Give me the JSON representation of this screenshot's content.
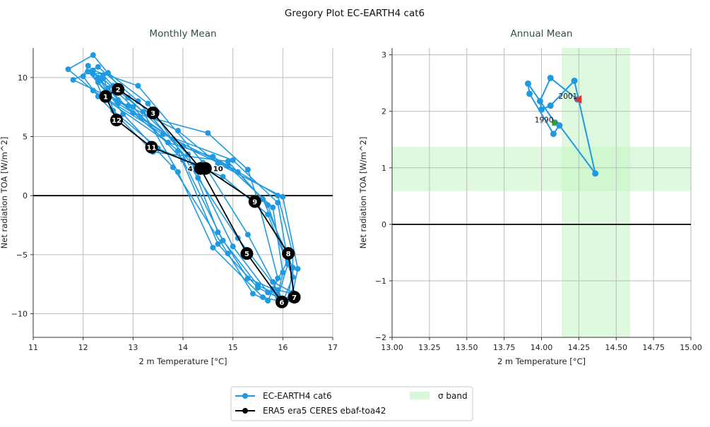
{
  "chart_data": [
    {
      "type": "line",
      "suptitle": "Gregory Plot EC-EARTH4 cat6",
      "title": "Monthly Mean",
      "xlabel": "2 m Temperature [°C]",
      "ylabel": "Net radiation TOA [W/m^2]",
      "xlim": [
        11,
        17
      ],
      "ylim": [
        -12,
        12.5
      ],
      "xticks": [
        "11",
        "12",
        "13",
        "14",
        "15",
        "16",
        "17"
      ],
      "yticks": [
        "−10",
        "−5",
        "0",
        "5",
        "10"
      ],
      "grid": true,
      "zero_line": true,
      "series": [
        {
          "name": "EC-EARTH4 cat6",
          "color": "#1f9ae0",
          "years": [
            [
              [
                12.3,
                9.6
              ],
              [
                12.4,
                9.9
              ],
              [
                13.0,
                7.5
              ],
              [
                14.0,
                3.0
              ],
              [
                14.8,
                -3.8
              ],
              [
                15.5,
                -7.6
              ],
              [
                15.9,
                -8.4
              ],
              [
                16.0,
                -6.5
              ],
              [
                15.8,
                -1.0
              ],
              [
                14.9,
                2.5
              ],
              [
                13.8,
                4.8
              ],
              [
                12.7,
                7.8
              ]
            ],
            [
              [
                12.1,
                10.5
              ],
              [
                12.3,
                10.9
              ],
              [
                13.1,
                8.0
              ],
              [
                14.2,
                2.6
              ],
              [
                15.0,
                -4.3
              ],
              [
                15.7,
                -8.2
              ],
              [
                16.1,
                -8.8
              ],
              [
                16.2,
                -6.1
              ],
              [
                15.6,
                -0.3
              ],
              [
                15.1,
                2.0
              ],
              [
                14.0,
                4.2
              ],
              [
                12.5,
                8.6
              ]
            ],
            [
              [
                11.7,
                10.7
              ],
              [
                12.2,
                11.9
              ],
              [
                12.9,
                8.3
              ],
              [
                14.1,
                3.5
              ],
              [
                14.7,
                -3.1
              ],
              [
                15.3,
                -7.0
              ],
              [
                15.8,
                -7.9
              ],
              [
                16.1,
                -5.5
              ],
              [
                15.9,
                -0.6
              ],
              [
                15.0,
                3.0
              ],
              [
                13.6,
                5.2
              ],
              [
                12.2,
                8.9
              ]
            ],
            [
              [
                12.4,
                10.2
              ],
              [
                12.6,
                9.3
              ],
              [
                13.2,
                7.1
              ],
              [
                13.9,
                2.0
              ],
              [
                14.6,
                -4.4
              ],
              [
                15.6,
                -8.6
              ],
              [
                16.0,
                -9.0
              ],
              [
                16.2,
                -6.9
              ],
              [
                15.7,
                -1.6
              ],
              [
                14.8,
                1.6
              ],
              [
                13.5,
                4.0
              ],
              [
                12.6,
                7.2
              ]
            ],
            [
              [
                11.8,
                9.8
              ],
              [
                12.2,
                10.6
              ],
              [
                13.1,
                9.3
              ],
              [
                14.4,
                2.8
              ],
              [
                15.3,
                -3.3
              ],
              [
                15.8,
                -7.3
              ],
              [
                16.2,
                -8.2
              ],
              [
                16.3,
                -6.2
              ],
              [
                16.0,
                -0.1
              ],
              [
                14.7,
                2.7
              ],
              [
                13.9,
                5.5
              ],
              [
                12.9,
                7.6
              ]
            ],
            [
              [
                12.5,
                9.1
              ],
              [
                12.3,
                10.0
              ],
              [
                12.8,
                6.9
              ],
              [
                13.8,
                2.4
              ],
              [
                14.9,
                -4.9
              ],
              [
                15.4,
                -8.3
              ],
              [
                15.7,
                -8.9
              ],
              [
                15.9,
                -7.0
              ],
              [
                15.5,
                -0.4
              ],
              [
                15.3,
                2.2
              ],
              [
                14.5,
                5.3
              ],
              [
                13.0,
                7.0
              ]
            ],
            [
              [
                12.2,
                10.3
              ],
              [
                12.5,
                10.4
              ],
              [
                13.3,
                7.8
              ],
              [
                14.3,
                1.5
              ],
              [
                15.1,
                -3.6
              ],
              [
                15.9,
                -8.0
              ],
              [
                16.2,
                -8.3
              ],
              [
                16.2,
                -4.9
              ],
              [
                15.9,
                0.0
              ],
              [
                14.6,
                3.3
              ],
              [
                13.7,
                4.5
              ],
              [
                12.4,
                8.3
              ]
            ],
            [
              [
                12.0,
                10.1
              ],
              [
                12.1,
                11.0
              ],
              [
                12.7,
                8.1
              ],
              [
                13.9,
                3.8
              ],
              [
                14.7,
                -4.1
              ],
              [
                15.5,
                -7.8
              ],
              [
                15.9,
                -8.6
              ],
              [
                16.1,
                -5.8
              ],
              [
                15.7,
                -0.8
              ],
              [
                14.9,
                2.9
              ],
              [
                13.4,
                3.7
              ],
              [
                12.3,
                8.4
              ]
            ]
          ]
        },
        {
          "name": "ERA5 era5 CERES ebaf-toa42",
          "color": "#000000",
          "months": [
            "1",
            "2",
            "3",
            "4",
            "5",
            "6",
            "7",
            "8",
            "9",
            "10",
            "11",
            "12"
          ],
          "points": [
            [
              12.45,
              8.4
            ],
            [
              12.7,
              9.0
            ],
            [
              13.4,
              7.0
            ],
            [
              14.35,
              2.3
            ],
            [
              15.28,
              -4.9
            ],
            [
              15.98,
              -9.0
            ],
            [
              16.23,
              -8.6
            ],
            [
              16.11,
              -4.9
            ],
            [
              15.44,
              -0.5
            ],
            [
              14.45,
              2.3
            ],
            [
              13.37,
              4.1
            ],
            [
              12.67,
              6.4
            ]
          ]
        }
      ]
    },
    {
      "type": "line",
      "title": "Annual Mean",
      "xlabel": "2 m Temperature [°C]",
      "ylabel": "Net radiation TOA [W/m^2]",
      "xlim": [
        13.0,
        15.0
      ],
      "ylim": [
        -2,
        3.12
      ],
      "xticks": [
        "13.00",
        "13.25",
        "13.50",
        "13.75",
        "14.00",
        "14.25",
        "14.50",
        "14.75",
        "15.00"
      ],
      "yticks": [
        "−2",
        "−1",
        "0",
        "1",
        "2",
        "3"
      ],
      "grid": true,
      "zero_line": true,
      "sigma_band": {
        "x": [
          14.135,
          14.593
        ],
        "y": [
          0.59,
          1.37
        ],
        "color": "#c8f5c8"
      },
      "series": [
        {
          "name": "EC-EARTH4 cat6",
          "color": "#1f9ae0",
          "points": [
            [
              14.09,
              1.8
            ],
            [
              13.91,
              2.49
            ],
            [
              13.92,
              2.31
            ],
            [
              14.08,
              1.6
            ],
            [
              14.12,
              1.75
            ],
            [
              14.36,
              0.9
            ],
            [
              14.22,
              2.54
            ],
            [
              14.06,
              2.1
            ],
            [
              14.0,
              2.03
            ],
            [
              13.99,
              2.18
            ],
            [
              14.06,
              2.59
            ],
            [
              14.24,
              2.21
            ]
          ],
          "start_label": "1990",
          "end_label": "2001",
          "start_color": "#2ca02c",
          "end_color": "#e03030"
        }
      ]
    }
  ],
  "legend": {
    "items": [
      {
        "label": "EC-EARTH4 cat6",
        "color": "#1f9ae0"
      },
      {
        "label": "ERA5 era5 CERES ebaf-toa42",
        "color": "#000000"
      },
      {
        "label": "σ band",
        "color": "#c8f5c8"
      }
    ]
  }
}
